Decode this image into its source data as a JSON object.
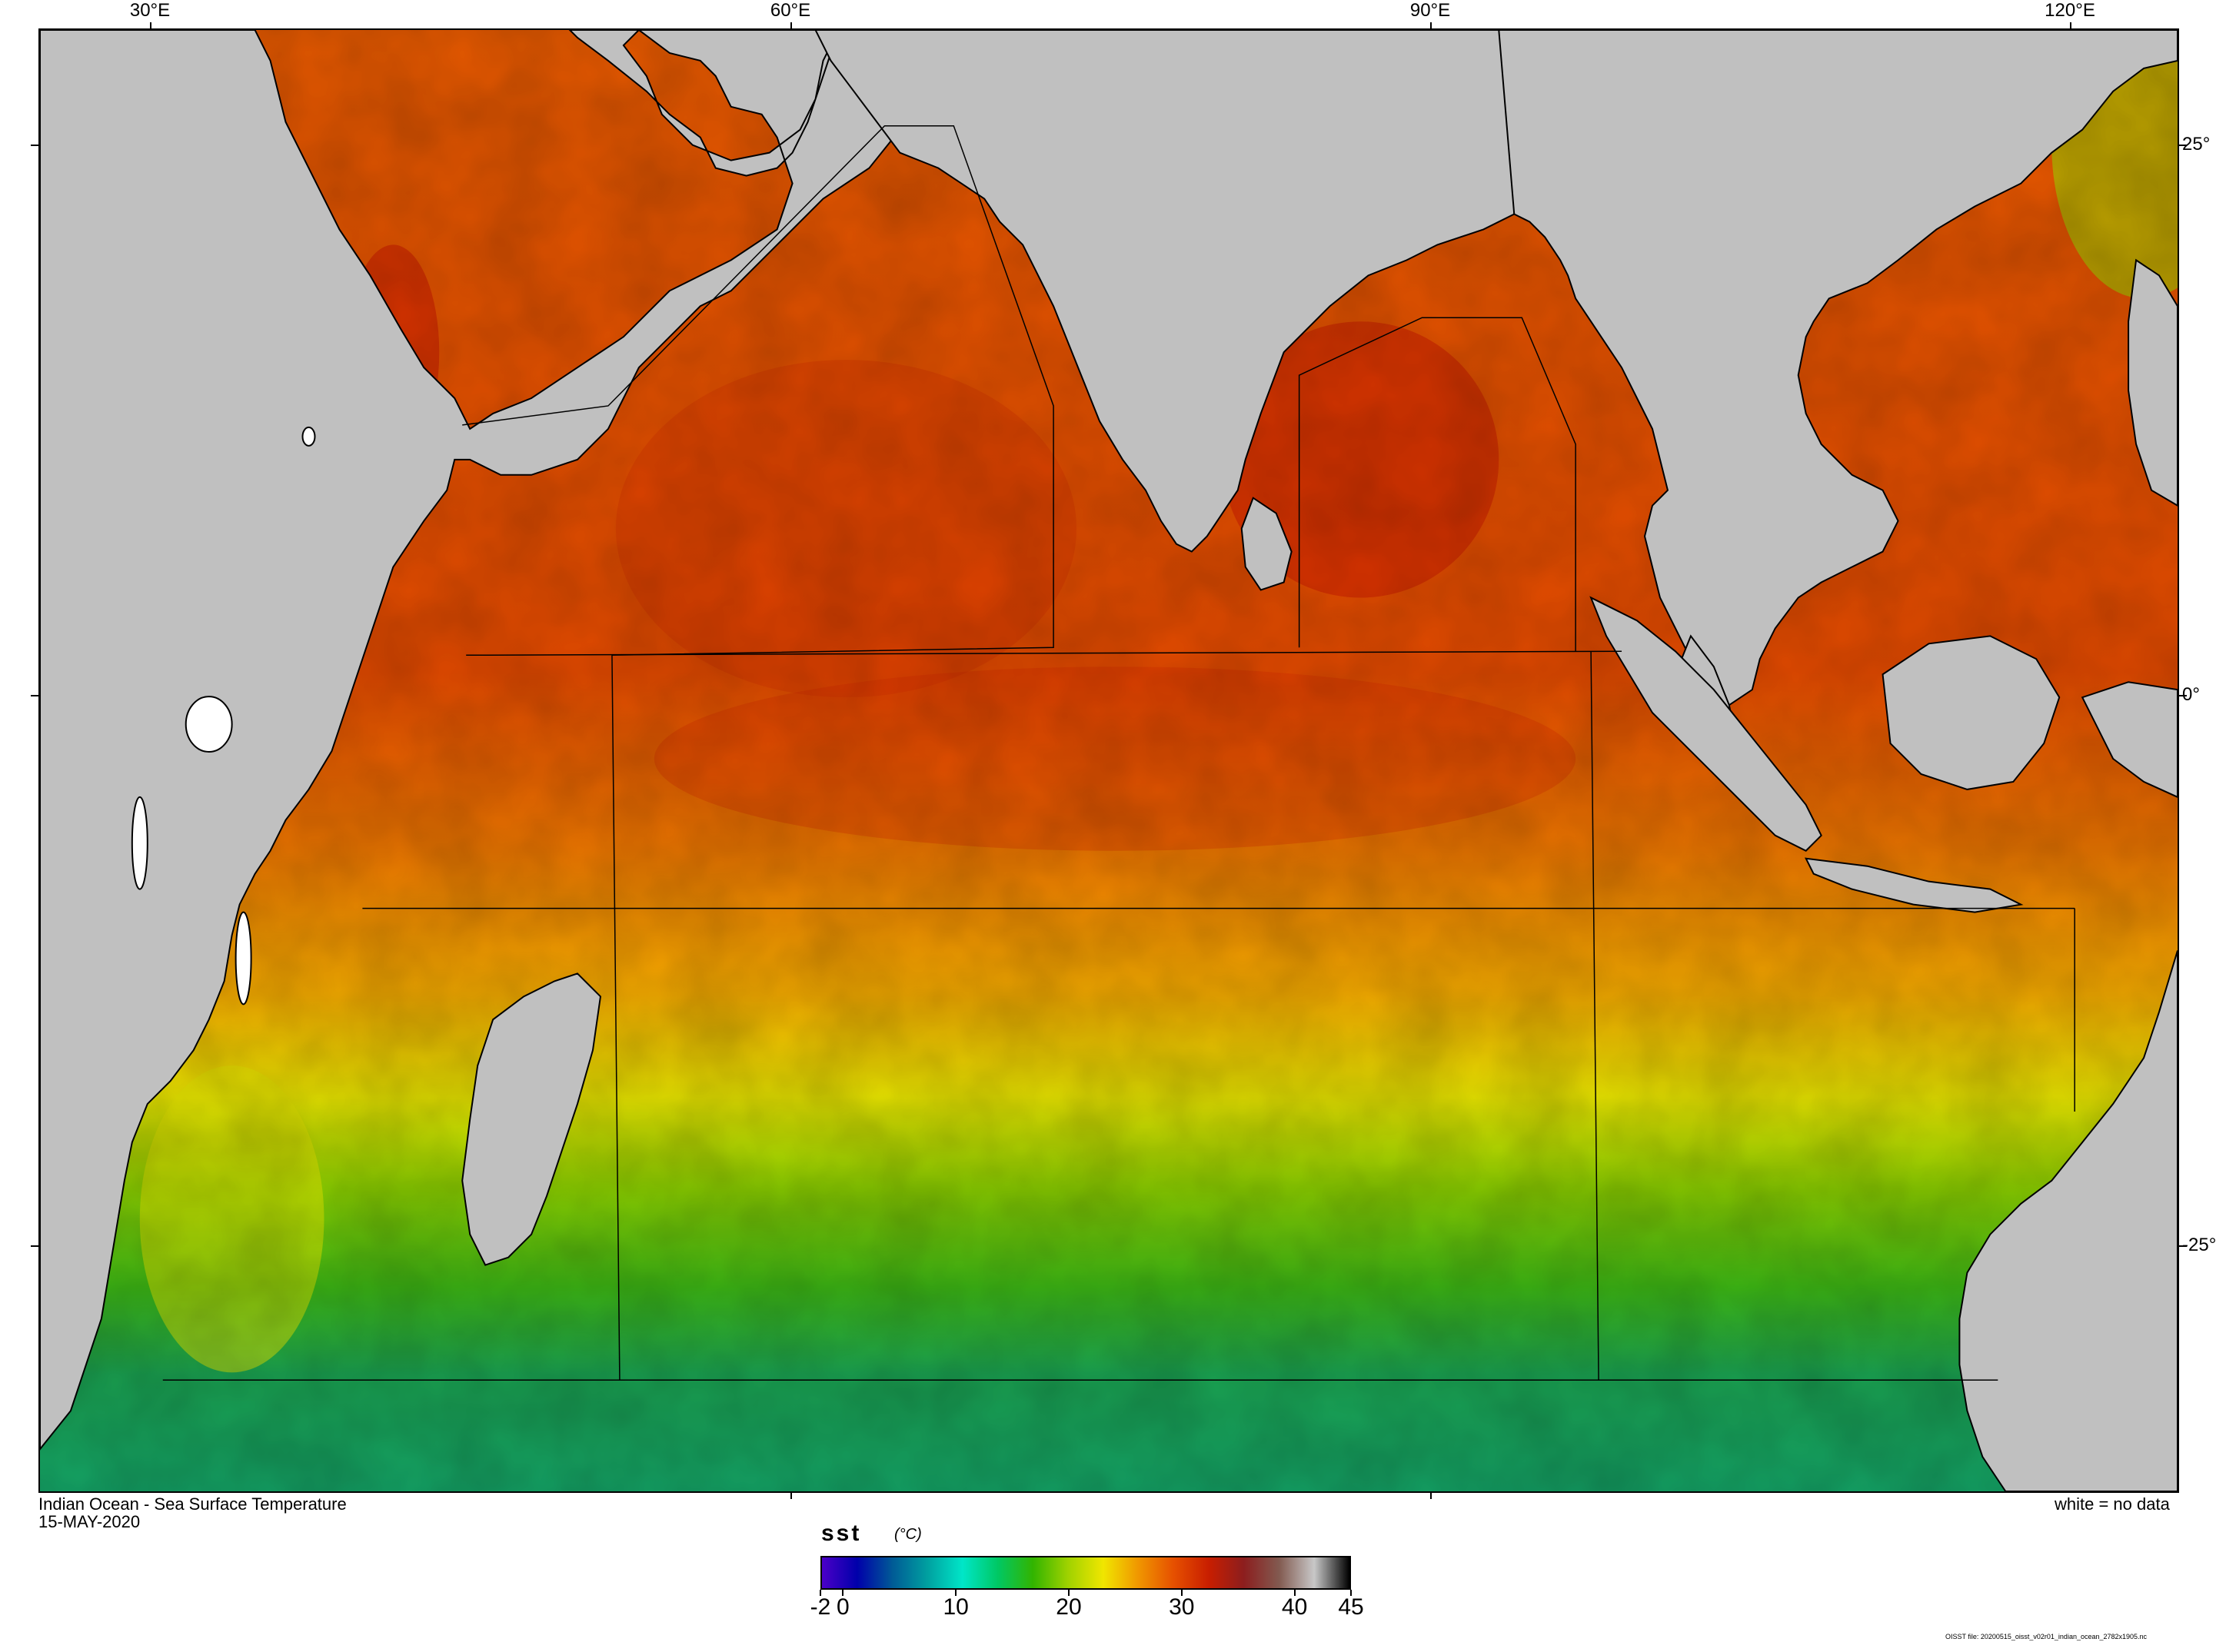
{
  "map": {
    "title": "Indian Ocean - Sea Surface Temperature",
    "date": "15-MAY-2020",
    "no_data_note": "white = no data",
    "file_note": "OISST file: 20200515_oisst_v02r01_indian_ocean_2782x1905.nc",
    "longitude_labels": [
      "30°E",
      "60°E",
      "90°E",
      "120°E"
    ],
    "latitude_labels": [
      "25°",
      "0°",
      "-25°"
    ],
    "land_color": "#c0c0c0",
    "no_data_color": "#ffffff"
  },
  "colorbar": {
    "variable": "sst",
    "unit": "(°C)",
    "range": [
      -2,
      45
    ],
    "tick_labels": [
      "-2",
      "0",
      "10",
      "20",
      "30",
      "40",
      "45"
    ],
    "colors": [
      "#4b00c8",
      "#0000aa",
      "#005a96",
      "#00a0a0",
      "#00e6c8",
      "#00c864",
      "#32b400",
      "#a0d200",
      "#f0e600",
      "#f09600",
      "#e65000",
      "#c81e00",
      "#8c1e1e",
      "#825a50",
      "#c8c8c8",
      "#000000"
    ]
  }
}
